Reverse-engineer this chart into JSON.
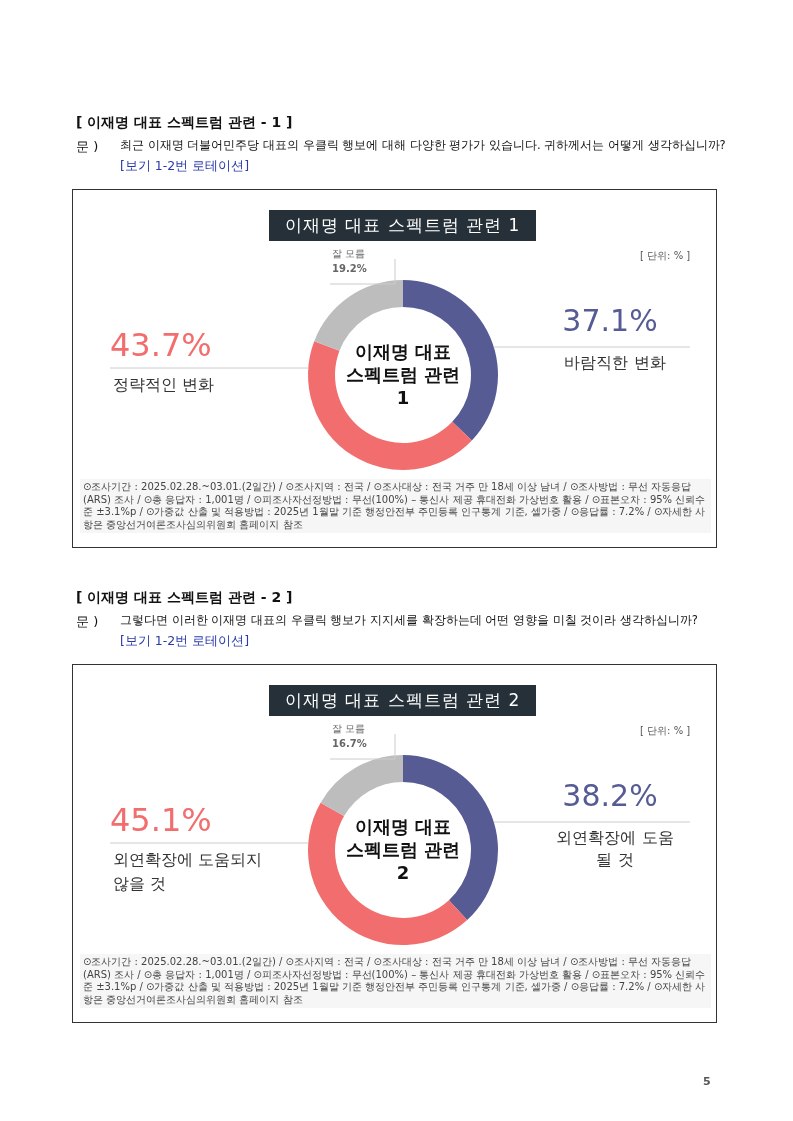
{
  "chart_data": [
    {
      "type": "donut",
      "title": "이재명 대표 스펙트럼 관련 1",
      "categories": [
        "바람직한 변화",
        "정략적인 변화",
        "잘 모름"
      ],
      "values": [
        37.1,
        43.7,
        19.2
      ],
      "value_labels": [
        "37.1%",
        "43.7%",
        "19.2%"
      ],
      "colors": [
        "#565b94",
        "#f26d6d",
        "#bdbdbd"
      ],
      "annotations": [
        "[ 이재명 대표 스펙트럼 관련 - 1 ]",
        "문 )",
        "최근 이재명 더불어민주당 대표의 우클릭 행보에 대해 다양한 평가가 있습니다. 귀하께서는 어떻게 생각하십니까?",
        "[보기 1-2번 로테이션]",
        "이재명 대표 스펙트럼 관련 1",
        "[ 단위: % ]",
        "⊙조사기간 : 2025.02.28.~03.01.(2일간) / ⊙조사지역 : 전국 / ⊙조사대상 : 전국 거주 만 18세 이상 남녀 / ⊙조사방법 : 무선 자동응답(ARS) 조사 / ⊙총 응답자 : 1,001명 / ⊙피조사자선정방법 : 무선(100%) – 통신사 제공 휴대전화 가상번호 활용 / ⊙표본오차 : 95% 신뢰수준 ±3.1%p / ⊙가중값 산출 및 적용방법 : 2025년 1월말 기준 행정안전부 주민등록 인구통계 기준, 셀가중 / ⊙응답률 : 7.2% / ⊙자세한 사항은 중앙선거여론조사심의위원회 홈페이지 참조"
      ]
    },
    {
      "type": "donut",
      "title": "이재명 대표 스펙트럼 관련 2",
      "categories": [
        "외연확장에 도움 될 것",
        "외연확장에 도움되지 않을 것",
        "잘 모름"
      ],
      "values": [
        38.2,
        45.1,
        16.7
      ],
      "value_labels": [
        "38.2%",
        "45.1%",
        "16.7%"
      ],
      "colors": [
        "#565b94",
        "#f26d6d",
        "#bdbdbd"
      ],
      "annotations": [
        "[ 이재명 대표 스펙트럼 관련 - 2 ]",
        "문 )",
        "그렇다면 이러한 이재명 대표의 우클릭 행보가 지지세를 확장하는데 어떤 영향을 미칠 것이라 생각하십니까?",
        "[보기 1-2번 로테이션]",
        "이재명 대표 스펙트럼 관련 2",
        "[ 단위: % ]",
        "⊙조사기간 : 2025.02.28.~03.01.(2일간) / ⊙조사지역 : 전국 / ⊙조사대상 : 전국 거주 만 18세 이상 남녀 / ⊙조사방법 : 무선 자동응답(ARS) 조사 / ⊙총 응답자 : 1,001명 / ⊙피조사자선정방법 : 무선(100%) – 통신사 제공 휴대전화 가상번호 활용 / ⊙표본오차 : 95% 신뢰수준 ±3.1%p / ⊙가중값 산출 및 적용방법 : 2025년 1월말 기준 행정안전부 주민등록 인구통계 기준, 셀가중 / ⊙응답률 : 7.2% / ⊙자세한 사항은 중앙선거여론조사심의위원회 홈페이지 참조",
        "5"
      ]
    }
  ]
}
